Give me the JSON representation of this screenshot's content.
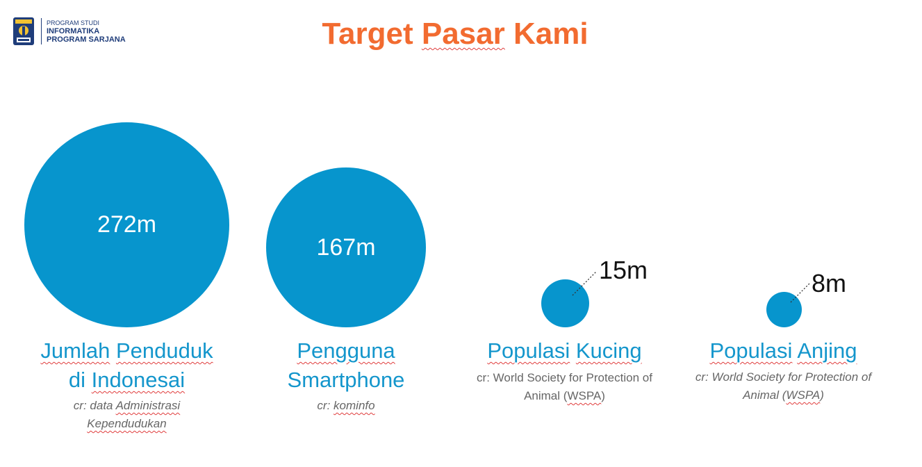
{
  "logo": {
    "line1": "PROGRAM STUDI",
    "line2": "INFORMATIKA",
    "line3": "PROGRAM SARJANA",
    "icon": "university-emblem-icon"
  },
  "title": {
    "part1": "Target",
    "part2": "Pasar",
    "part3": "Kami"
  },
  "colors": {
    "title": "#f26b30",
    "circle": "#0795cd",
    "label": "#1496cc",
    "source": "#666666"
  },
  "items": [
    {
      "value": "272m",
      "label_line1a": "Jumlah",
      "label_line1b": "Penduduk",
      "label_line2a": "di",
      "label_line2b": "Indonesai",
      "source_line1a": "cr: data",
      "source_line1b": "Administrasi",
      "source_line2": "Kependudukan"
    },
    {
      "value": "167m",
      "label_line1": "Pengguna",
      "label_line2": "Smartphone",
      "source_prefix": "cr:",
      "source_name": "kominfo"
    },
    {
      "value": "15m",
      "label_line1a": "Populasi",
      "label_line1b": "Kucing",
      "source_line1": "cr: World Society for Protection of",
      "source_line2a": "Animal (",
      "source_line2b": "WSPA",
      "source_line2c": ")"
    },
    {
      "value": "8m",
      "label_line1a": "Populasi",
      "label_line1b": "Anjing",
      "source_line1": "cr: World Society for Protection of",
      "source_line2a": "Animal (",
      "source_line2b": "WSPA",
      "source_line2c": ")"
    }
  ]
}
